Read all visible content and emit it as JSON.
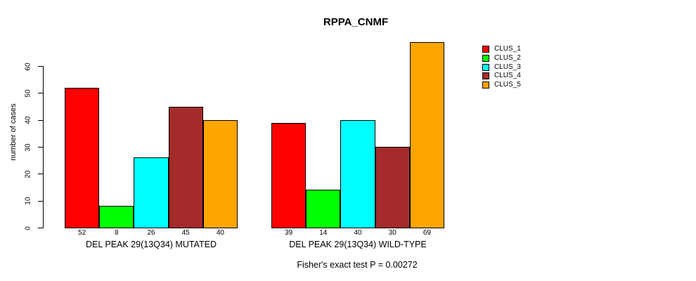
{
  "chart_data": {
    "type": "bar",
    "title": "RPPA_CNMF",
    "xlabel": "",
    "ylabel": "number of cases",
    "ylim": [
      0,
      69
    ],
    "yticks": [
      0,
      10,
      20,
      30,
      40,
      50,
      60
    ],
    "grid": false,
    "legend_position": "top-right",
    "legend": [
      {
        "label": "CLUS_1",
        "color": "#FF0000"
      },
      {
        "label": "CLUS_2",
        "color": "#00FF00"
      },
      {
        "label": "CLUS_3",
        "color": "#00FFFF"
      },
      {
        "label": "CLUS_4",
        "color": "#A52A2A"
      },
      {
        "label": "CLUS_5",
        "color": "#FFA500"
      }
    ],
    "groups": [
      {
        "label": "DEL PEAK 29(13Q34) MUTATED",
        "values": [
          52,
          8,
          26,
          45,
          40
        ]
      },
      {
        "label": "DEL PEAK 29(13Q34) WILD-TYPE",
        "values": [
          39,
          14,
          40,
          30,
          69
        ]
      }
    ],
    "annotation": "Fisher's exact test P = 0.00272"
  }
}
